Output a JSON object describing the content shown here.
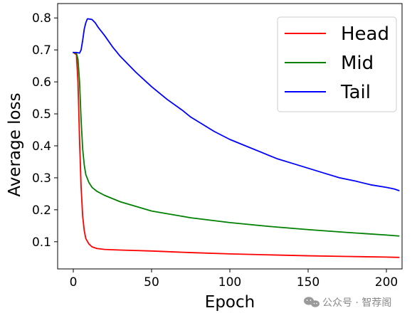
{
  "chart_data": {
    "type": "line",
    "xlabel": "Epoch",
    "ylabel": "Average loss",
    "xlim": [
      -10,
      210
    ],
    "ylim": [
      0.015,
      0.845
    ],
    "xticks": [
      0,
      50,
      100,
      150,
      200
    ],
    "yticks": [
      0.1,
      0.2,
      0.3,
      0.4,
      0.5,
      0.6,
      0.7,
      0.8
    ],
    "grid": false,
    "legend_position": "top-right",
    "series": [
      {
        "name": "Head",
        "color": "#ff0000",
        "x": [
          0,
          2,
          3,
          4,
          5,
          6,
          7,
          8,
          10,
          12,
          15,
          20,
          30,
          50,
          75,
          100,
          125,
          150,
          175,
          200,
          208
        ],
        "y": [
          0.692,
          0.685,
          0.6,
          0.42,
          0.27,
          0.18,
          0.135,
          0.11,
          0.093,
          0.084,
          0.079,
          0.076,
          0.074,
          0.071,
          0.066,
          0.062,
          0.059,
          0.056,
          0.054,
          0.052,
          0.051
        ]
      },
      {
        "name": "Mid",
        "color": "#008000",
        "x": [
          0,
          2,
          3,
          4,
          5,
          6,
          7,
          8,
          10,
          12,
          15,
          20,
          30,
          50,
          75,
          100,
          125,
          150,
          175,
          200,
          208
        ],
        "y": [
          0.692,
          0.69,
          0.67,
          0.6,
          0.48,
          0.39,
          0.34,
          0.31,
          0.285,
          0.27,
          0.258,
          0.245,
          0.225,
          0.196,
          0.175,
          0.16,
          0.148,
          0.138,
          0.129,
          0.121,
          0.118
        ]
      },
      {
        "name": "Tail",
        "color": "#0000ff",
        "x": [
          0,
          2,
          4,
          5,
          6,
          7,
          8,
          9,
          10,
          12,
          14,
          16,
          20,
          25,
          30,
          40,
          50,
          60,
          70,
          75,
          80,
          90,
          100,
          110,
          120,
          130,
          140,
          150,
          160,
          170,
          180,
          190,
          200,
          205,
          208
        ],
        "y": [
          0.692,
          0.692,
          0.69,
          0.7,
          0.73,
          0.765,
          0.785,
          0.797,
          0.797,
          0.795,
          0.785,
          0.77,
          0.745,
          0.71,
          0.68,
          0.63,
          0.585,
          0.545,
          0.51,
          0.49,
          0.475,
          0.445,
          0.42,
          0.4,
          0.38,
          0.36,
          0.345,
          0.33,
          0.315,
          0.3,
          0.29,
          0.278,
          0.27,
          0.265,
          0.26
        ]
      }
    ]
  },
  "watermark": {
    "text": "公众号 · 智荐阁",
    "icon": "wechat-icon"
  }
}
